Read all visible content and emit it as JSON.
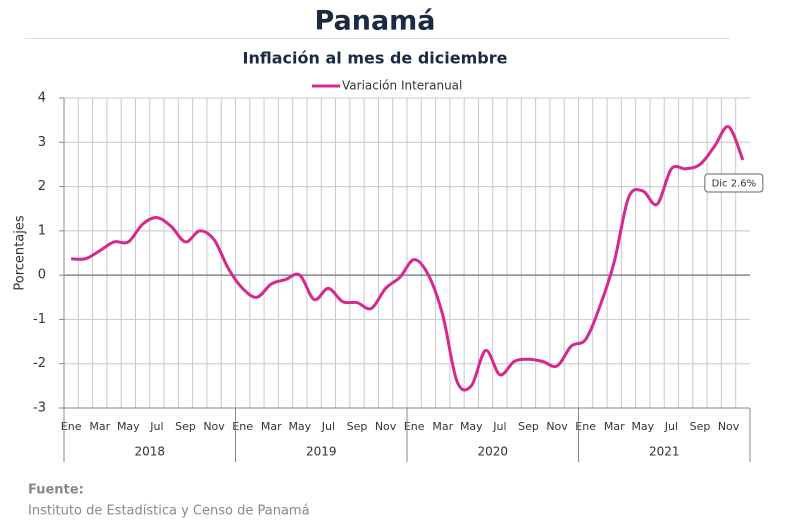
{
  "chart_data": {
    "type": "line",
    "title": "Panamá",
    "subtitle": "Inflación al mes de diciembre",
    "y_label": "Porcentajes",
    "categories": [
      "Ene",
      null,
      "Mar",
      null,
      "May",
      null,
      "Jul",
      null,
      "Sep",
      null,
      "Nov",
      null,
      "Ene",
      null,
      "Mar",
      null,
      "May",
      null,
      "Jul",
      null,
      "Sep",
      null,
      "Nov",
      null,
      "Ene",
      null,
      "Mar",
      null,
      "May",
      null,
      "Jul",
      null,
      "Sep",
      null,
      "Nov",
      null,
      "Ene",
      null,
      "Mar",
      null,
      "May",
      null,
      "Jul",
      null,
      "Sep",
      null,
      "Nov",
      null
    ],
    "year_groups": [
      "2018",
      "2019",
      "2020",
      "2021"
    ],
    "series": [
      {
        "name": "Variación Interanual",
        "color": "#d6288f",
        "values": [
          0.37,
          0.37,
          0.55,
          0.75,
          0.75,
          1.15,
          1.3,
          1.1,
          0.75,
          1.0,
          0.8,
          0.15,
          -0.3,
          -0.5,
          -0.2,
          -0.1,
          0.0,
          -0.55,
          -0.3,
          -0.6,
          -0.62,
          -0.75,
          -0.3,
          -0.05,
          0.35,
          0.0,
          -0.9,
          -2.4,
          -2.5,
          -1.7,
          -2.25,
          -1.95,
          -1.9,
          -1.95,
          -2.05,
          -1.6,
          -1.45,
          -0.7,
          0.3,
          1.75,
          1.9,
          1.6,
          2.4,
          2.4,
          2.5,
          2.9,
          3.35,
          2.6
        ],
        "value_labels": [
          null,
          null,
          null,
          null,
          null,
          null,
          null,
          null,
          null,
          null,
          null,
          null,
          null,
          null,
          null,
          null,
          null,
          null,
          null,
          null,
          null,
          null,
          null,
          null,
          null,
          null,
          null,
          null,
          null,
          null,
          null,
          null,
          null,
          null,
          null,
          null,
          null,
          null,
          null,
          null,
          null,
          null,
          null,
          null,
          null,
          null,
          null,
          "Dic 2.6%"
        ]
      }
    ],
    "ylim": [
      -3,
      4
    ],
    "yticks": [
      -3,
      -2,
      -1,
      0,
      1,
      2,
      3,
      4
    ],
    "grid": true,
    "legend": "top",
    "source_title": "Fuente:",
    "source": "Instituto de Estadística y Censo de Panamá"
  }
}
